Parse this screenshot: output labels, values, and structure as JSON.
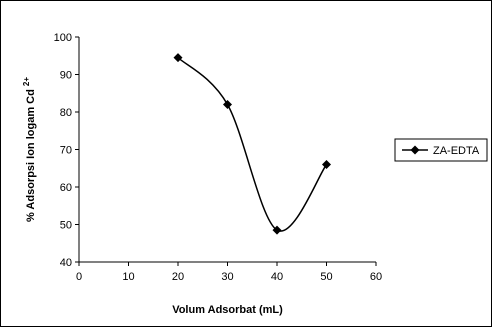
{
  "chart_data": {
    "type": "scatter",
    "title": "",
    "xlabel": "Volum Adsorbat (mL)",
    "ylabel": "% Adsorpsi Ion logam Cd",
    "ylabel_superscript": "2+",
    "xlim": [
      0,
      60
    ],
    "ylim": [
      40,
      100
    ],
    "xticks": [
      0,
      10,
      20,
      30,
      40,
      50,
      60
    ],
    "yticks": [
      40,
      50,
      60,
      70,
      80,
      90,
      100
    ],
    "grid": false,
    "smooth_line": true,
    "legend_position": "right",
    "series": [
      {
        "name": "ZA-EDTA",
        "color": "#000000",
        "marker": "diamond",
        "x": [
          20,
          30,
          40,
          50
        ],
        "y": [
          94.5,
          82,
          48.5,
          66
        ]
      }
    ]
  }
}
